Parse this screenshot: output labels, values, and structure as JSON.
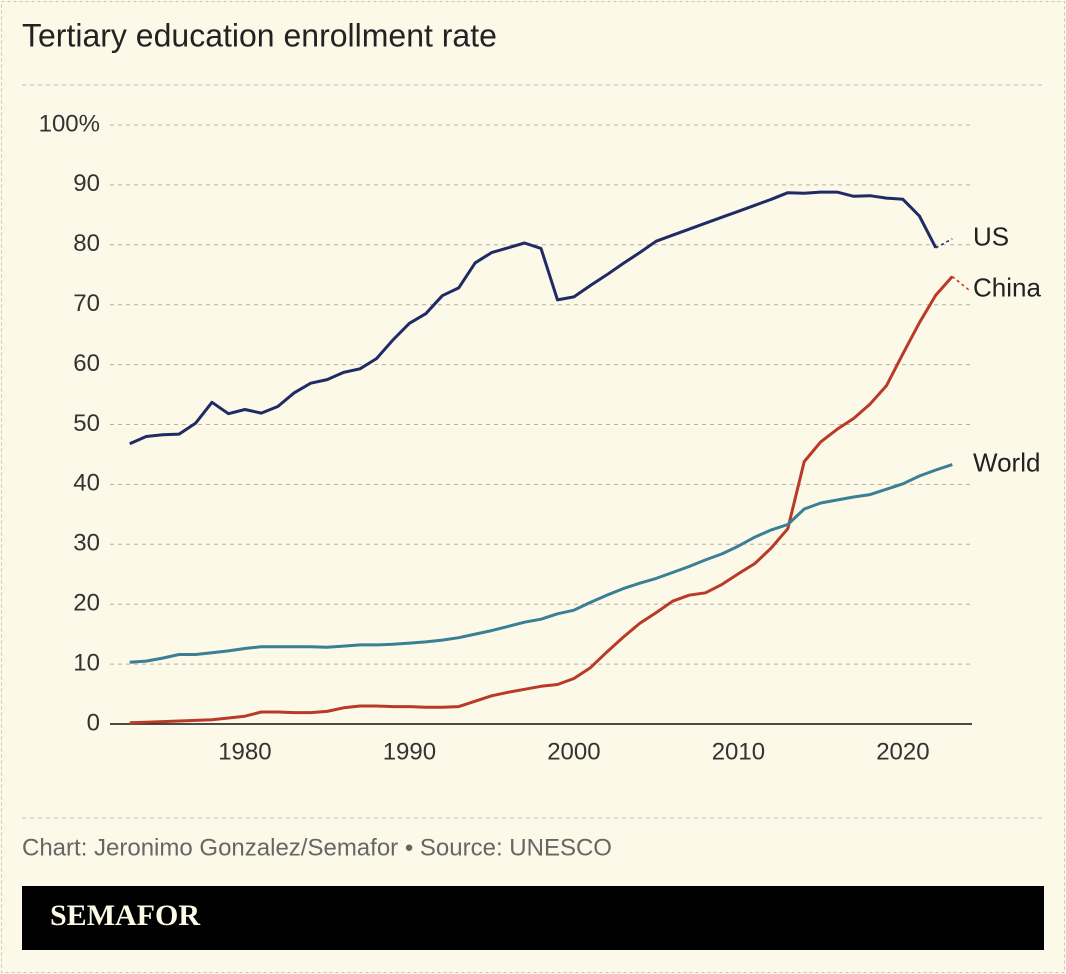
{
  "chart_data": {
    "type": "line",
    "title": "Tertiary education enrollment rate",
    "source": "Chart: Jeronimo Gonzalez/Semafor • Source: UNESCO",
    "x": [
      1973,
      1974,
      1975,
      1976,
      1977,
      1978,
      1979,
      1980,
      1981,
      1982,
      1983,
      1984,
      1985,
      1986,
      1987,
      1988,
      1989,
      1990,
      1991,
      1992,
      1993,
      1994,
      1995,
      1996,
      1997,
      1998,
      1999,
      2000,
      2001,
      2002,
      2003,
      2004,
      2005,
      2006,
      2007,
      2008,
      2009,
      2010,
      2011,
      2012,
      2013,
      2014,
      2015,
      2016,
      2017,
      2018,
      2019,
      2020,
      2021,
      2022,
      2023,
      2024
    ],
    "series": [
      {
        "name": "US",
        "color": "#1f2a66",
        "dashed_last_segment": true,
        "values": [
          46.8,
          48.0,
          48.3,
          48.4,
          50.2,
          53.7,
          51.8,
          52.5,
          51.9,
          53.0,
          55.3,
          56.9,
          57.5,
          58.7,
          59.3,
          61.0,
          64.1,
          66.9,
          68.5,
          71.5,
          72.8,
          77.0,
          78.7,
          79.5,
          80.3,
          79.4,
          70.8,
          71.3,
          73.2,
          75.0,
          76.9,
          78.7,
          80.6,
          81.6,
          82.6,
          83.6,
          84.6,
          85.6,
          86.6,
          87.6,
          88.7,
          88.6,
          88.8,
          88.8,
          88.1,
          88.2,
          87.8,
          87.6,
          84.8,
          79.5,
          81.0,
          null
        ]
      },
      {
        "name": "China",
        "color": "#b93a26",
        "dashed_last_segment": true,
        "values": [
          0.2,
          0.3,
          0.4,
          0.5,
          0.6,
          0.7,
          1.0,
          1.3,
          2.0,
          2.0,
          1.9,
          1.9,
          2.1,
          2.7,
          3.0,
          3.0,
          2.9,
          2.9,
          2.8,
          2.8,
          2.9,
          3.8,
          4.7,
          5.3,
          5.8,
          6.3,
          6.6,
          7.6,
          9.4,
          12.0,
          14.5,
          16.8,
          18.6,
          20.5,
          21.5,
          21.9,
          23.3,
          25.1,
          26.8,
          29.4,
          32.6,
          43.8,
          47.1,
          49.2,
          51.0,
          53.4,
          56.5,
          61.8,
          67.0,
          71.6,
          74.7,
          72.5
        ]
      },
      {
        "name": "World",
        "color": "#3a7f96",
        "dashed_last_segment": false,
        "values": [
          10.3,
          10.5,
          11.0,
          11.6,
          11.6,
          11.9,
          12.2,
          12.6,
          12.9,
          12.9,
          12.9,
          12.9,
          12.8,
          13.0,
          13.2,
          13.2,
          13.3,
          13.5,
          13.7,
          14.0,
          14.4,
          15.0,
          15.6,
          16.3,
          17.0,
          17.5,
          18.4,
          19.0,
          20.3,
          21.5,
          22.6,
          23.5,
          24.3,
          25.3,
          26.3,
          27.4,
          28.4,
          29.7,
          31.2,
          32.4,
          33.3,
          35.9,
          36.9,
          37.4,
          37.9,
          38.3,
          39.2,
          40.1,
          41.4,
          42.4,
          43.3,
          null
        ]
      }
    ],
    "xlim": [
      1971.8,
      2024.2
    ],
    "xticks": [
      1980,
      1990,
      2000,
      2010,
      2020
    ],
    "ylim": [
      0,
      100
    ],
    "yticks": [
      0,
      10,
      20,
      30,
      40,
      50,
      60,
      70,
      80,
      90,
      {
        "value": 100,
        "label": "100%"
      }
    ],
    "grid": true
  },
  "footer": {
    "brand": "SEMAFOR"
  }
}
